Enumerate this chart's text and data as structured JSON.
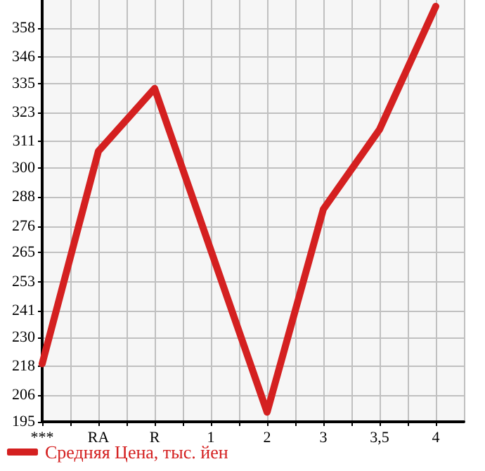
{
  "chart_data": {
    "type": "line",
    "categories": [
      "***",
      "RA",
      "R",
      "1",
      "2",
      "3",
      "3,5",
      "4"
    ],
    "series": [
      {
        "name": "Средняя Цена, тыс. йен",
        "color": "#d42020",
        "values": [
          219,
          307,
          333,
          266,
          199,
          283,
          316,
          367
        ]
      }
    ],
    "ylim": [
      195,
      369.6
    ],
    "yticks": [
      195,
      206,
      218,
      230,
      241,
      253,
      265,
      276,
      288,
      300,
      311,
      323,
      335,
      346,
      358
    ],
    "grid": true,
    "legend": "bottom left",
    "marker": "none",
    "line_style": "solid"
  }
}
